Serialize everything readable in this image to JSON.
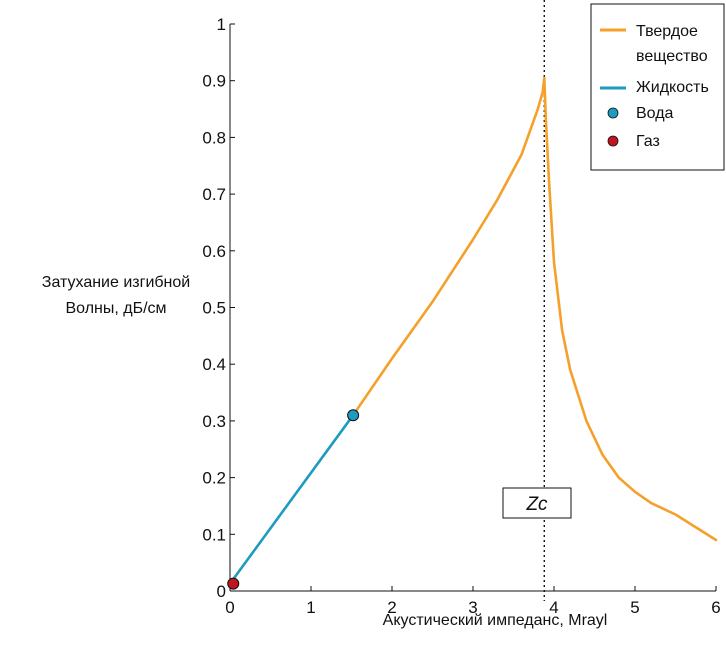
{
  "chart_data": {
    "type": "line",
    "xlabel": "Акустический импеданс, Mrayl",
    "ylabel_lines": [
      "Затухание изгибной",
      "Волны, дБ/см"
    ],
    "xlim": [
      0,
      6
    ],
    "ylim": [
      0,
      1
    ],
    "x_ticks": [
      "0",
      "1",
      "2",
      "3",
      "4",
      "5",
      "6"
    ],
    "y_ticks": [
      "0",
      "0.1",
      "0.2",
      "0.3",
      "0.4",
      "0.5",
      "0.6",
      "0.7",
      "0.8",
      "0.9",
      "1"
    ],
    "grid": false,
    "legend_position": "top-right",
    "series": [
      {
        "name": "Твердое вещество",
        "name_lines": [
          "Твердое",
          "вещество"
        ],
        "kind": "line",
        "color": "#f5a02a",
        "x": [
          1.52,
          2.0,
          2.5,
          3.0,
          3.3,
          3.6,
          3.8,
          3.86,
          3.88,
          3.9,
          3.94,
          4.0,
          4.1,
          4.2,
          4.4,
          4.6,
          4.8,
          5.0,
          5.2,
          5.5,
          6.0
        ],
        "y": [
          0.31,
          0.41,
          0.51,
          0.62,
          0.69,
          0.77,
          0.85,
          0.88,
          0.905,
          0.83,
          0.72,
          0.58,
          0.46,
          0.39,
          0.3,
          0.24,
          0.2,
          0.175,
          0.155,
          0.135,
          0.09
        ]
      },
      {
        "name": "Жидкость",
        "kind": "line",
        "color": "#1e9bbf",
        "x": [
          0.0,
          1.52
        ],
        "y": [
          0.013,
          0.31
        ]
      },
      {
        "name": "Вода",
        "kind": "marker",
        "color": "#1e9bbf",
        "x": [
          1.52
        ],
        "y": [
          0.31
        ]
      },
      {
        "name": "Газ",
        "kind": "marker",
        "color": "#c0161f",
        "x": [
          0.04
        ],
        "y": [
          0.013
        ]
      }
    ],
    "annotations": [
      {
        "kind": "vline",
        "x": 3.88,
        "style": "dotted"
      },
      {
        "kind": "label",
        "text": "Zc",
        "x": 3.6,
        "y": 0.085
      }
    ]
  }
}
